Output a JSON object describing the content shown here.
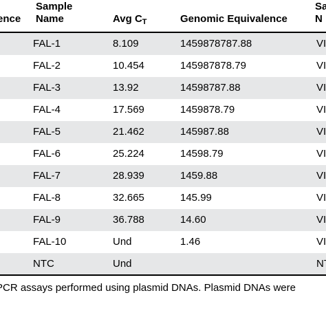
{
  "headers": {
    "col0": "ence",
    "col1_line1": "Sample",
    "col1_line2": "Name",
    "col2": "Avg C",
    "col2_sub": "T",
    "col3": "Genomic Equivalence",
    "col4_line1": "Sa",
    "col4_line2": "N"
  },
  "rows": [
    {
      "name": "FAL-1",
      "avg": "8.109",
      "ge": "1459878787.88",
      "tail": "VI"
    },
    {
      "name": "FAL-2",
      "avg": "10.454",
      "ge": "145987878.79",
      "tail": "VI"
    },
    {
      "name": "FAL-3",
      "avg": "13.92",
      "ge": "14598787.88",
      "tail": "VI"
    },
    {
      "name": "FAL-4",
      "avg": "17.569",
      "ge": "1459878.79",
      "tail": "VI"
    },
    {
      "name": "FAL-5",
      "avg": "21.462",
      "ge": "145987.88",
      "tail": "VI"
    },
    {
      "name": "FAL-6",
      "avg": "25.224",
      "ge": "14598.79",
      "tail": "VI"
    },
    {
      "name": "FAL-7",
      "avg": "28.939",
      "ge": "1459.88",
      "tail": "VI"
    },
    {
      "name": "FAL-8",
      "avg": "32.665",
      "ge": "145.99",
      "tail": "VI"
    },
    {
      "name": "FAL-9",
      "avg": "36.788",
      "ge": "14.60",
      "tail": "VI"
    },
    {
      "name": "FAL-10",
      "avg": "Und",
      "ge": "1.46",
      "tail": "VI"
    },
    {
      "name": "NTC",
      "avg": "Und",
      "ge": "",
      "tail": "NT"
    }
  ],
  "caption": "PCR assays performed using plasmid DNAs. Plasmid DNAs were"
}
